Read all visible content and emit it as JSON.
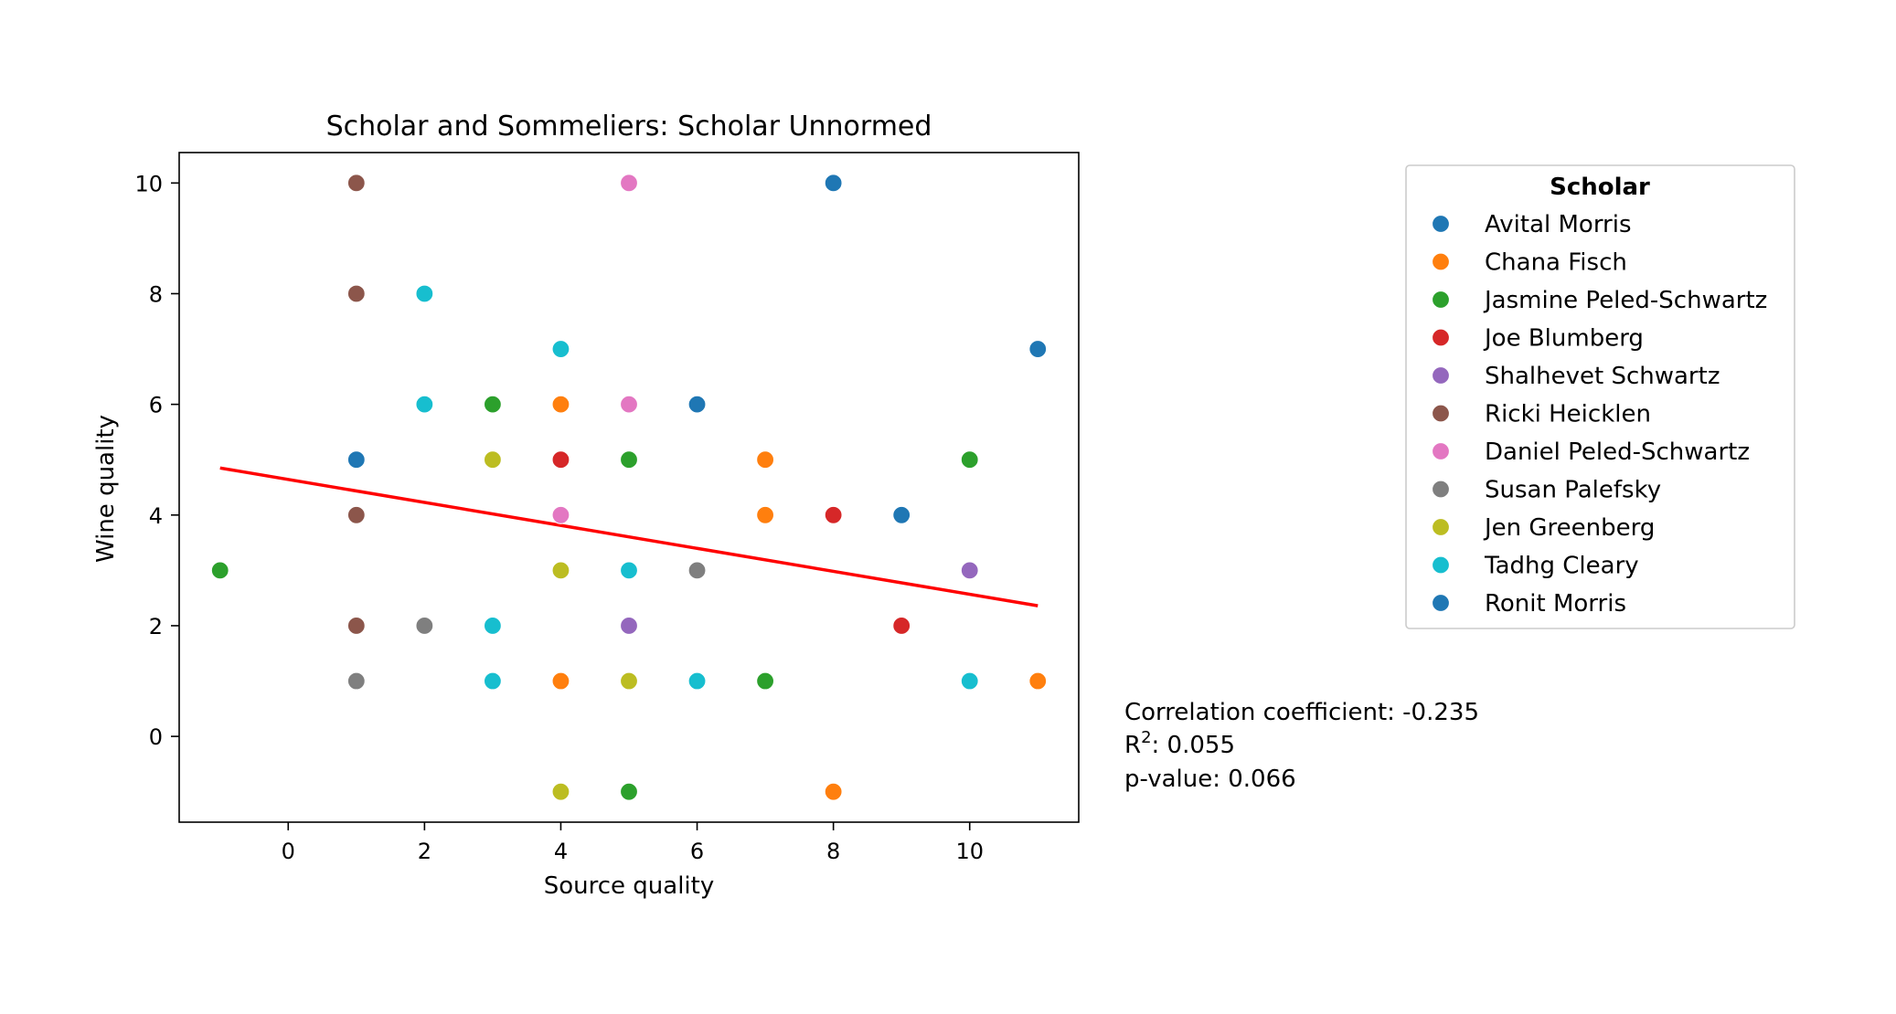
{
  "chart_data": {
    "type": "scatter",
    "title": "Scholar and Sommeliers: Scholar Unnormed",
    "xlabel": "Source quality",
    "ylabel": "Wine quality",
    "xlim": [
      -1.6,
      11.6
    ],
    "ylim": [
      -1.55,
      10.55
    ],
    "x_ticks": [
      0,
      2,
      4,
      6,
      8,
      10
    ],
    "y_ticks": [
      0,
      2,
      4,
      6,
      8,
      10
    ],
    "grid": false,
    "legend": {
      "title": "Scholar",
      "placement": "outside-right"
    },
    "series": [
      {
        "name": "Avital Morris",
        "color": "#1f77b4",
        "points": [
          [
            1,
            5
          ],
          [
            6,
            6
          ],
          [
            8,
            10
          ],
          [
            9,
            4
          ],
          [
            11,
            7
          ]
        ]
      },
      {
        "name": "Chana Fisch",
        "color": "#ff7f0e",
        "points": [
          [
            4,
            6
          ],
          [
            4,
            1
          ],
          [
            7,
            5
          ],
          [
            7,
            4
          ],
          [
            8,
            -1
          ],
          [
            11,
            1
          ]
        ]
      },
      {
        "name": "Jasmine Peled-Schwartz",
        "color": "#2ca02c",
        "points": [
          [
            -1,
            3
          ],
          [
            3,
            6
          ],
          [
            5,
            5
          ],
          [
            5,
            -1
          ],
          [
            7,
            1
          ],
          [
            10,
            5
          ]
        ]
      },
      {
        "name": "Joe Blumberg",
        "color": "#d62728",
        "points": [
          [
            4,
            5
          ],
          [
            8,
            4
          ],
          [
            9,
            2
          ]
        ]
      },
      {
        "name": "Shalhevet Schwartz",
        "color": "#9467bd",
        "points": [
          [
            5,
            2
          ],
          [
            10,
            3
          ]
        ]
      },
      {
        "name": "Ricki Heicklen",
        "color": "#8c564b",
        "points": [
          [
            1,
            10
          ],
          [
            1,
            8
          ],
          [
            1,
            4
          ],
          [
            1,
            2
          ]
        ]
      },
      {
        "name": "Daniel Peled-Schwartz",
        "color": "#e377c2",
        "points": [
          [
            5,
            10
          ],
          [
            5,
            6
          ],
          [
            4,
            4
          ]
        ]
      },
      {
        "name": "Susan Palefsky",
        "color": "#7f7f7f",
        "points": [
          [
            1,
            1
          ],
          [
            2,
            2
          ],
          [
            6,
            3
          ]
        ]
      },
      {
        "name": "Jen Greenberg",
        "color": "#bcbd22",
        "points": [
          [
            3,
            5
          ],
          [
            4,
            3
          ],
          [
            5,
            1
          ],
          [
            4,
            -1
          ]
        ]
      },
      {
        "name": "Tadhg Cleary",
        "color": "#17becf",
        "points": [
          [
            2,
            8
          ],
          [
            2,
            6
          ],
          [
            4,
            7
          ],
          [
            3,
            2
          ],
          [
            3,
            1
          ],
          [
            5,
            3
          ],
          [
            6,
            1
          ],
          [
            10,
            1
          ]
        ]
      },
      {
        "name": "Ronit Morris",
        "color": "#1f77b4",
        "points": []
      }
    ],
    "regression": {
      "color": "#ff0000",
      "x_range": [
        -1,
        11
      ],
      "y_range": [
        4.85,
        2.36
      ]
    },
    "stats": {
      "corr_label": "Correlation coefficient: -0.235",
      "r2_prefix": "R",
      "r2_sup": "2",
      "r2_rest": ": 0.055",
      "p_label": "p-value: 0.066"
    }
  }
}
